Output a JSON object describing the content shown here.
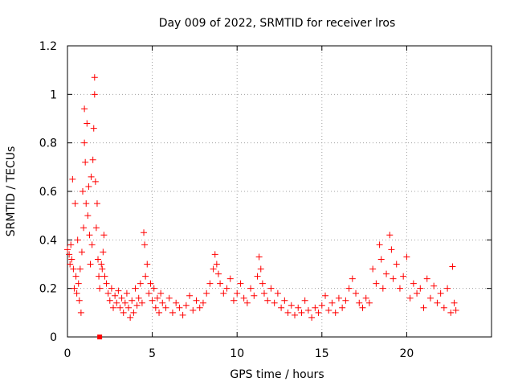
{
  "chart_data": {
    "type": "scatter",
    "title": "Day 009 of 2022, SRMTID for receiver lros",
    "xlabel": "GPS time / hours",
    "ylabel": "SRMTID / TECUs",
    "xlim": [
      0,
      25
    ],
    "ylim": [
      0,
      1.2
    ],
    "x_ticks": [
      0,
      5,
      10,
      15,
      20
    ],
    "x_tick_labels": [
      "0",
      "5",
      "10",
      "15",
      "20"
    ],
    "y_ticks": [
      0,
      0.2,
      0.4,
      0.6,
      0.8,
      1.0,
      1.2
    ],
    "y_tick_labels": [
      "0",
      "0.2",
      "0.4",
      "0.6",
      "0.8",
      "1",
      "1.2"
    ],
    "grid": true,
    "marker": "+",
    "color": "#ff0000",
    "series": [
      {
        "name": "SRMTID",
        "points": [
          [
            0.0,
            0.36
          ],
          [
            0.1,
            0.34
          ],
          [
            0.15,
            0.3
          ],
          [
            0.2,
            0.38
          ],
          [
            0.25,
            0.32
          ],
          [
            0.3,
            0.65
          ],
          [
            0.35,
            0.28
          ],
          [
            0.4,
            0.2
          ],
          [
            0.45,
            0.55
          ],
          [
            0.5,
            0.25
          ],
          [
            0.55,
            0.18
          ],
          [
            0.6,
            0.4
          ],
          [
            0.65,
            0.22
          ],
          [
            0.7,
            0.15
          ],
          [
            0.75,
            0.28
          ],
          [
            0.8,
            0.1
          ],
          [
            0.85,
            0.35
          ],
          [
            0.9,
            0.6
          ],
          [
            0.95,
            0.45
          ],
          [
            1.0,
            0.94
          ],
          [
            1.0,
            0.8
          ],
          [
            1.05,
            0.72
          ],
          [
            1.1,
            0.55
          ],
          [
            1.15,
            0.88
          ],
          [
            1.2,
            0.5
          ],
          [
            1.25,
            0.62
          ],
          [
            1.3,
            0.42
          ],
          [
            1.35,
            0.3
          ],
          [
            1.4,
            0.66
          ],
          [
            1.45,
            0.38
          ],
          [
            1.5,
            0.73
          ],
          [
            1.55,
            0.86
          ],
          [
            1.6,
            1.07
          ],
          [
            1.6,
            1.0
          ],
          [
            1.65,
            0.64
          ],
          [
            1.7,
            0.45
          ],
          [
            1.75,
            0.55
          ],
          [
            1.8,
            0.32
          ],
          [
            1.85,
            0.25
          ],
          [
            1.9,
            0.2
          ],
          [
            2.0,
            0.3
          ],
          [
            2.05,
            0.28
          ],
          [
            2.1,
            0.35
          ],
          [
            2.15,
            0.42
          ],
          [
            2.2,
            0.25
          ],
          [
            2.3,
            0.22
          ],
          [
            2.4,
            0.18
          ],
          [
            2.5,
            0.15
          ],
          [
            2.6,
            0.2
          ],
          [
            2.7,
            0.12
          ],
          [
            2.8,
            0.17
          ],
          [
            2.9,
            0.14
          ],
          [
            3.0,
            0.19
          ],
          [
            3.1,
            0.12
          ],
          [
            3.2,
            0.16
          ],
          [
            3.3,
            0.1
          ],
          [
            3.4,
            0.14
          ],
          [
            3.5,
            0.18
          ],
          [
            3.6,
            0.12
          ],
          [
            3.7,
            0.08
          ],
          [
            3.8,
            0.15
          ],
          [
            3.9,
            0.1
          ],
          [
            4.0,
            0.2
          ],
          [
            4.1,
            0.13
          ],
          [
            4.2,
            0.16
          ],
          [
            4.3,
            0.22
          ],
          [
            4.4,
            0.14
          ],
          [
            4.5,
            0.43
          ],
          [
            4.55,
            0.38
          ],
          [
            4.6,
            0.25
          ],
          [
            4.7,
            0.3
          ],
          [
            4.8,
            0.18
          ],
          [
            4.9,
            0.22
          ],
          [
            5.0,
            0.15
          ],
          [
            5.1,
            0.2
          ],
          [
            5.2,
            0.12
          ],
          [
            5.3,
            0.16
          ],
          [
            5.4,
            0.1
          ],
          [
            5.5,
            0.18
          ],
          [
            5.6,
            0.14
          ],
          [
            5.8,
            0.12
          ],
          [
            6.0,
            0.16
          ],
          [
            6.2,
            0.1
          ],
          [
            6.4,
            0.14
          ],
          [
            6.6,
            0.12
          ],
          [
            6.8,
            0.09
          ],
          [
            7.0,
            0.13
          ],
          [
            7.2,
            0.17
          ],
          [
            7.4,
            0.11
          ],
          [
            7.6,
            0.15
          ],
          [
            7.8,
            0.12
          ],
          [
            8.0,
            0.14
          ],
          [
            8.2,
            0.18
          ],
          [
            8.4,
            0.22
          ],
          [
            8.6,
            0.28
          ],
          [
            8.7,
            0.34
          ],
          [
            8.8,
            0.3
          ],
          [
            8.9,
            0.26
          ],
          [
            9.0,
            0.22
          ],
          [
            9.2,
            0.18
          ],
          [
            9.4,
            0.2
          ],
          [
            9.6,
            0.24
          ],
          [
            9.8,
            0.15
          ],
          [
            10.0,
            0.18
          ],
          [
            10.2,
            0.22
          ],
          [
            10.4,
            0.16
          ],
          [
            10.6,
            0.14
          ],
          [
            10.8,
            0.2
          ],
          [
            11.0,
            0.17
          ],
          [
            11.2,
            0.25
          ],
          [
            11.3,
            0.33
          ],
          [
            11.4,
            0.28
          ],
          [
            11.5,
            0.22
          ],
          [
            11.6,
            0.18
          ],
          [
            11.8,
            0.15
          ],
          [
            12.0,
            0.2
          ],
          [
            12.2,
            0.14
          ],
          [
            12.4,
            0.18
          ],
          [
            12.6,
            0.12
          ],
          [
            12.8,
            0.15
          ],
          [
            13.0,
            0.1
          ],
          [
            13.2,
            0.13
          ],
          [
            13.4,
            0.09
          ],
          [
            13.6,
            0.12
          ],
          [
            13.8,
            0.1
          ],
          [
            14.0,
            0.15
          ],
          [
            14.2,
            0.11
          ],
          [
            14.4,
            0.08
          ],
          [
            14.6,
            0.12
          ],
          [
            14.8,
            0.1
          ],
          [
            15.0,
            0.13
          ],
          [
            15.2,
            0.17
          ],
          [
            15.4,
            0.11
          ],
          [
            15.6,
            0.14
          ],
          [
            15.8,
            0.1
          ],
          [
            16.0,
            0.16
          ],
          [
            16.2,
            0.12
          ],
          [
            16.4,
            0.15
          ],
          [
            16.6,
            0.2
          ],
          [
            16.8,
            0.24
          ],
          [
            17.0,
            0.18
          ],
          [
            17.2,
            0.14
          ],
          [
            17.4,
            0.12
          ],
          [
            17.6,
            0.16
          ],
          [
            17.8,
            0.14
          ],
          [
            18.0,
            0.28
          ],
          [
            18.2,
            0.22
          ],
          [
            18.4,
            0.38
          ],
          [
            18.5,
            0.32
          ],
          [
            18.6,
            0.2
          ],
          [
            18.8,
            0.26
          ],
          [
            19.0,
            0.42
          ],
          [
            19.1,
            0.36
          ],
          [
            19.2,
            0.24
          ],
          [
            19.4,
            0.3
          ],
          [
            19.6,
            0.2
          ],
          [
            19.8,
            0.25
          ],
          [
            20.0,
            0.33
          ],
          [
            20.2,
            0.16
          ],
          [
            20.4,
            0.22
          ],
          [
            20.6,
            0.18
          ],
          [
            20.8,
            0.2
          ],
          [
            21.0,
            0.12
          ],
          [
            21.2,
            0.24
          ],
          [
            21.4,
            0.16
          ],
          [
            21.6,
            0.21
          ],
          [
            21.8,
            0.14
          ],
          [
            22.0,
            0.18
          ],
          [
            22.2,
            0.12
          ],
          [
            22.4,
            0.2
          ],
          [
            22.6,
            0.1
          ],
          [
            22.7,
            0.29
          ],
          [
            22.8,
            0.14
          ],
          [
            22.9,
            0.11
          ]
        ]
      }
    ],
    "annotation_points": [
      {
        "x": 1.9,
        "y": 0.0,
        "marker": "square"
      }
    ]
  }
}
